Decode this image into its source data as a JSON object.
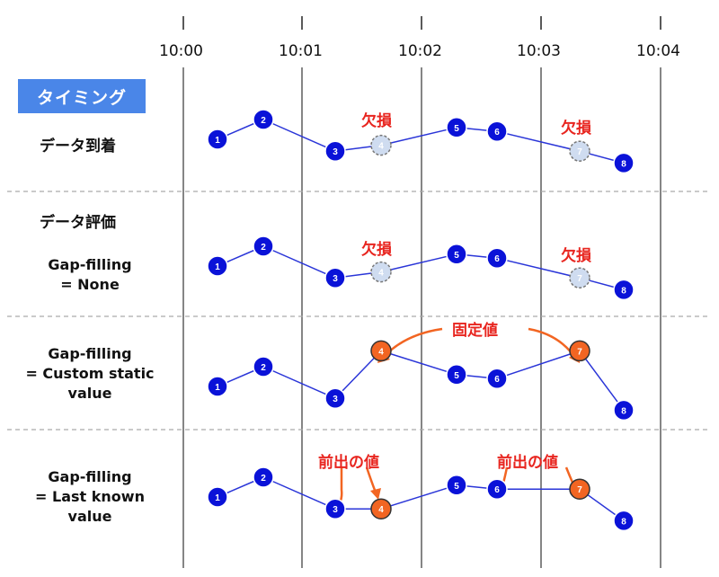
{
  "timeline": {
    "ticks": [
      "10:00",
      "10:01",
      "10:02",
      "10:03",
      "10:04"
    ]
  },
  "badge": "タイミング",
  "rows": [
    {
      "label": "データ到着",
      "points": [
        {
          "n": "1",
          "y": 0.0,
          "state": "present"
        },
        {
          "n": "2",
          "y": 1.0,
          "state": "present"
        },
        {
          "n": "3",
          "y": -0.6,
          "state": "present"
        },
        {
          "n": "4",
          "y": -0.3,
          "state": "missing"
        },
        {
          "n": "5",
          "y": 0.6,
          "state": "present"
        },
        {
          "n": "6",
          "y": 0.4,
          "state": "present"
        },
        {
          "n": "7",
          "y": -0.6,
          "state": "missing"
        },
        {
          "n": "8",
          "y": -1.2,
          "state": "present"
        }
      ],
      "annotations": [
        "欠損",
        "欠損"
      ]
    },
    {
      "label_main": "データ評価",
      "label_sub_1": "Gap-filling",
      "label_sub_2": "= None",
      "points": [
        {
          "n": "1",
          "y": 0.0,
          "state": "present"
        },
        {
          "n": "2",
          "y": 1.0,
          "state": "present"
        },
        {
          "n": "3",
          "y": -0.6,
          "state": "present"
        },
        {
          "n": "4",
          "y": -0.3,
          "state": "missing"
        },
        {
          "n": "5",
          "y": 0.6,
          "state": "present"
        },
        {
          "n": "6",
          "y": 0.4,
          "state": "present"
        },
        {
          "n": "7",
          "y": -0.6,
          "state": "missing"
        },
        {
          "n": "8",
          "y": -1.2,
          "state": "present"
        }
      ],
      "annotations": [
        "欠損",
        "欠損"
      ]
    },
    {
      "label_1": "Gap-filling",
      "label_2": "= Custom static",
      "label_3": "value",
      "points": [
        {
          "n": "1",
          "y": 0.0,
          "state": "present"
        },
        {
          "n": "2",
          "y": 1.0,
          "state": "present"
        },
        {
          "n": "3",
          "y": -0.6,
          "state": "present"
        },
        {
          "n": "4",
          "y": 1.8,
          "state": "filled"
        },
        {
          "n": "5",
          "y": 0.6,
          "state": "present"
        },
        {
          "n": "6",
          "y": 0.4,
          "state": "present"
        },
        {
          "n": "7",
          "y": 1.8,
          "state": "filled"
        },
        {
          "n": "8",
          "y": -1.2,
          "state": "present"
        }
      ],
      "annotation": "固定値"
    },
    {
      "label_1": "Gap-filling",
      "label_2": "= Last known",
      "label_3": "value",
      "points": [
        {
          "n": "1",
          "y": 0.0,
          "state": "present"
        },
        {
          "n": "2",
          "y": 1.0,
          "state": "present"
        },
        {
          "n": "3",
          "y": -0.6,
          "state": "present"
        },
        {
          "n": "4",
          "y": -0.6,
          "state": "filled"
        },
        {
          "n": "5",
          "y": 0.6,
          "state": "present"
        },
        {
          "n": "6",
          "y": 0.4,
          "state": "present"
        },
        {
          "n": "7",
          "y": 0.4,
          "state": "filled"
        },
        {
          "n": "8",
          "y": -1.2,
          "state": "present"
        }
      ],
      "annotations": [
        "前出の値",
        "前出の値"
      ]
    }
  ],
  "colors": {
    "present": "#0a12d8",
    "filled": "#f26522",
    "missing": "#cfdcf0",
    "line": "#2a35d8",
    "accent": "#e8251f",
    "badge": "#4a86e8"
  }
}
